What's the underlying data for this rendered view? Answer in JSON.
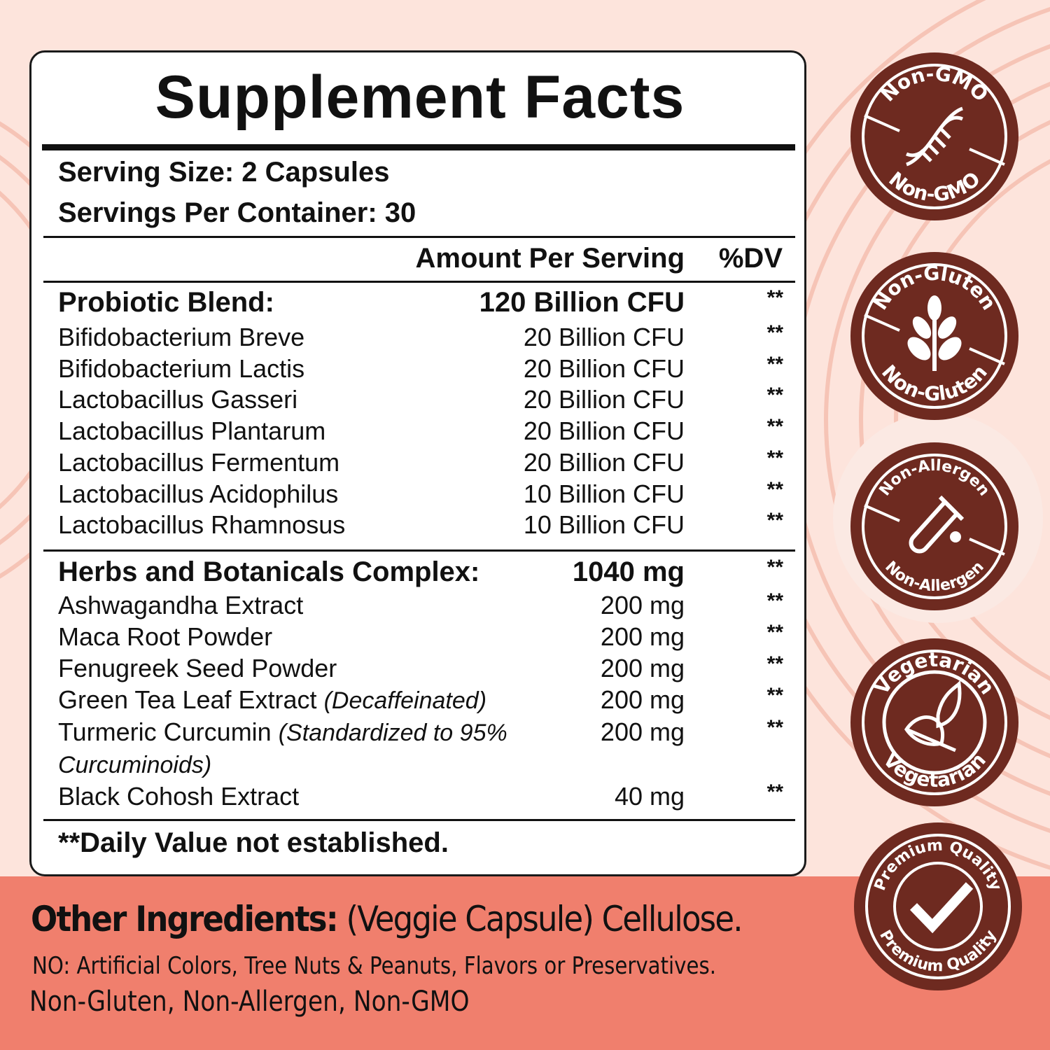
{
  "colors": {
    "background": "#fde4dc",
    "band": "#f07f6d",
    "badge": "#6e2a20",
    "text": "#111111"
  },
  "label": {
    "title": "Supplement Facts",
    "serving_size": "Serving Size: 2 Capsules",
    "servings_per_container": "Servings Per Container: 30",
    "header_amount": "Amount Per Serving",
    "header_dv": "%DV",
    "probiotic": {
      "name": "Probiotic Blend:",
      "amount": "120 Billion CFU",
      "dv": "**",
      "items": [
        {
          "name": "Bifidobacterium Breve",
          "amount": "20 Billion CFU",
          "dv": "**"
        },
        {
          "name": "Bifidobacterium Lactis",
          "amount": "20 Billion CFU",
          "dv": "**"
        },
        {
          "name": "Lactobacillus Gasseri",
          "amount": "20 Billion CFU",
          "dv": "**"
        },
        {
          "name": "Lactobacillus Plantarum",
          "amount": "20 Billion CFU",
          "dv": "**"
        },
        {
          "name": "Lactobacillus Fermentum",
          "amount": "20 Billion CFU",
          "dv": "**"
        },
        {
          "name": "Lactobacillus Acidophilus",
          "amount": "10 Billion CFU",
          "dv": "**"
        },
        {
          "name": "Lactobacillus Rhamnosus",
          "amount": "10 Billion CFU",
          "dv": "**"
        }
      ]
    },
    "herbs": {
      "name": "Herbs and Botanicals Complex:",
      "amount": "1040 mg",
      "dv": "**",
      "items": [
        {
          "name": "Ashwagandha Extract",
          "amount": "200 mg",
          "dv": "**"
        },
        {
          "name": "Maca Root Powder",
          "amount": "200 mg",
          "dv": "**"
        },
        {
          "name": "Fenugreek Seed Powder",
          "amount": "200 mg",
          "dv": "**"
        },
        {
          "name": "Green Tea Leaf Extract",
          "note": "(Decaffeinated)",
          "amount": "200 mg",
          "dv": "**"
        },
        {
          "name": "Turmeric Curcumin",
          "note": "(Standardized to 95% Curcuminoids)",
          "amount": "200 mg",
          "dv": "**"
        },
        {
          "name": "Black Cohosh Extract",
          "amount": "40 mg",
          "dv": "**"
        }
      ]
    },
    "footnote": "**Daily Value not established."
  },
  "other": {
    "heading": "Other Ingredients:",
    "text": "(Veggie Capsule) Cellulose.",
    "no_label": "NO:",
    "no_text": "Artificial Colors, Tree Nuts & Peanuts, Flavors or Preservatives.",
    "claims": "Non-Gluten, Non-Allergen, Non-GMO"
  },
  "badges": [
    {
      "top": "Non-GMO",
      "bottom": "Non-GMO",
      "icon": "dna-icon"
    },
    {
      "top": "Non-Gluten",
      "bottom": "Non-Gluten",
      "icon": "wheat-icon"
    },
    {
      "top": "Non-Allergen",
      "bottom": "Non-Allergen",
      "icon": "test-tube-icon"
    },
    {
      "top": "Vegetarian",
      "bottom": "Vegetarian",
      "icon": "leaf-icon"
    },
    {
      "top": "Premium Quality",
      "bottom": "Premium Quality",
      "icon": "checkmark-icon"
    }
  ]
}
